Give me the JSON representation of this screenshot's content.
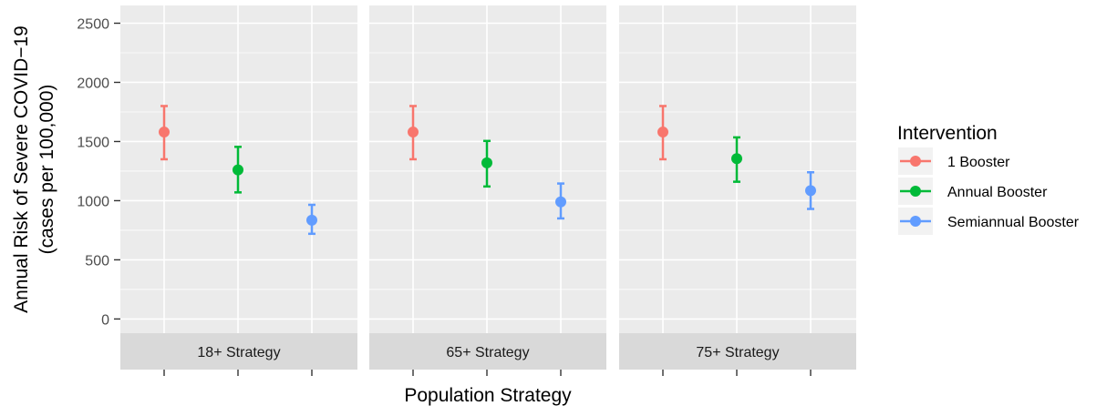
{
  "chart_data": {
    "type": "scatter",
    "subtype": "point-with-errorbars, faceted",
    "xlabel": "Population Strategy",
    "ylabel_lines": [
      "Annual Risk of Severe COVID−19",
      "(cases per 100,000)"
    ],
    "ylim": [
      -120,
      2650
    ],
    "yticks": [
      0,
      500,
      1000,
      1500,
      2000,
      2500
    ],
    "grid": true,
    "facet_position": "bottom strips",
    "legend": {
      "title": "Intervention",
      "placement": "right",
      "items": [
        {
          "label": "1 Booster",
          "color": "#F8766D"
        },
        {
          "label": "Annual Booster",
          "color": "#00BA38"
        },
        {
          "label": "Semiannual Booster",
          "color": "#619CFF"
        }
      ]
    },
    "facets": [
      {
        "label": "18+ Strategy",
        "series": [
          {
            "name": "1 Booster",
            "y": 1580,
            "ymin": 1350,
            "ymax": 1800
          },
          {
            "name": "Annual Booster",
            "y": 1260,
            "ymin": 1070,
            "ymax": 1455
          },
          {
            "name": "Semiannual Booster",
            "y": 835,
            "ymin": 720,
            "ymax": 965
          }
        ]
      },
      {
        "label": "65+ Strategy",
        "series": [
          {
            "name": "1 Booster",
            "y": 1580,
            "ymin": 1350,
            "ymax": 1800
          },
          {
            "name": "Annual Booster",
            "y": 1320,
            "ymin": 1120,
            "ymax": 1505
          },
          {
            "name": "Semiannual Booster",
            "y": 990,
            "ymin": 850,
            "ymax": 1145
          }
        ]
      },
      {
        "label": "75+ Strategy",
        "series": [
          {
            "name": "1 Booster",
            "y": 1580,
            "ymin": 1350,
            "ymax": 1800
          },
          {
            "name": "Annual Booster",
            "y": 1355,
            "ymin": 1160,
            "ymax": 1535
          },
          {
            "name": "Semiannual Booster",
            "y": 1085,
            "ymin": 930,
            "ymax": 1240
          }
        ]
      }
    ]
  }
}
